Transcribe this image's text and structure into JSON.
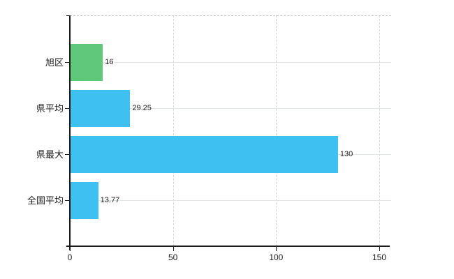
{
  "chart_data": {
    "type": "bar",
    "orientation": "horizontal",
    "title": "",
    "xlabel": "",
    "ylabel": "",
    "categories": [
      "旭区",
      "県平均",
      "県最大",
      "全国平均"
    ],
    "values": [
      16,
      29.25,
      130,
      13.77
    ],
    "value_labels": [
      "16",
      "29.25",
      "130",
      "13.77"
    ],
    "bar_colors": [
      "#5fc87a",
      "#3ec1f0",
      "#3ec1f0",
      "#3ec1f0"
    ],
    "x_ticks": [
      0,
      50,
      100,
      150
    ],
    "x_tick_labels": [
      "0",
      "50",
      "100",
      "150"
    ],
    "xlim": [
      0,
      155.7
    ],
    "grid": true,
    "legend": false
  },
  "colors": {
    "bar_green": "#5fc87a",
    "bar_blue": "#3ec1f0",
    "axis": "#1a1a1a",
    "grid_horizontal": "#dfe5df",
    "grid_vertical": "#d6d6d6",
    "plot_top_border": "#c8c8c8",
    "text": "#1a1a1a",
    "background": "#ffffff"
  }
}
